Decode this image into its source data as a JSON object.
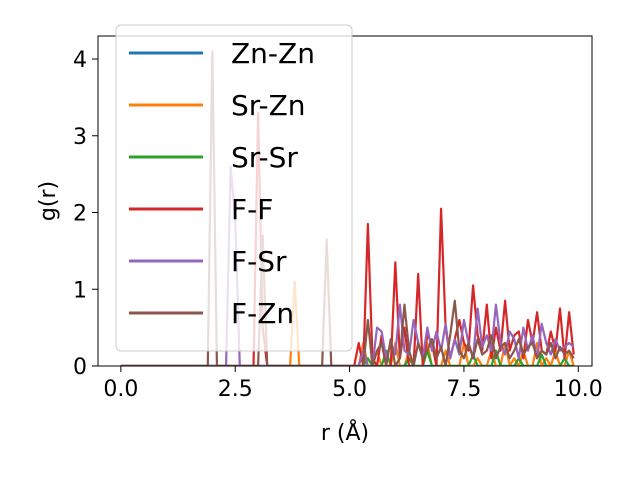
{
  "chart_data": {
    "type": "line",
    "title": "",
    "xlabel": "r (Å)",
    "ylabel": "g(r)",
    "xlim": [
      -0.5,
      10.3
    ],
    "ylim": [
      0,
      4.3
    ],
    "x_ticks": [
      0.0,
      2.5,
      5.0,
      7.5,
      10.0
    ],
    "x_tick_labels": [
      "0.0",
      "2.5",
      "5.0",
      "7.5",
      "10.0"
    ],
    "y_ticks": [
      0,
      1,
      2,
      3,
      4
    ],
    "y_tick_labels": [
      "0",
      "1",
      "2",
      "3",
      "4"
    ],
    "legend_position": "top-left",
    "x_start": 0.0,
    "x_step": 0.1,
    "series": [
      {
        "name": "Zn-Zn",
        "color": "#1f77b4",
        "values": [
          0,
          0,
          0,
          0,
          0,
          0,
          0,
          0,
          0,
          0,
          0,
          0,
          0,
          0,
          0,
          0,
          0,
          0,
          0,
          0,
          0,
          0,
          0,
          0,
          0,
          0,
          0,
          0,
          0,
          0,
          0,
          0,
          0,
          0,
          0,
          0,
          0,
          0,
          0,
          0,
          0,
          0,
          0,
          0,
          0,
          0,
          0,
          0,
          0,
          0,
          0,
          0,
          0,
          0,
          0,
          0,
          0,
          0,
          0,
          0,
          0,
          0,
          0,
          0,
          0,
          0,
          0,
          0,
          0,
          0,
          0,
          0,
          0,
          0,
          0,
          0,
          0,
          0,
          0,
          0,
          0,
          0,
          0,
          0,
          0,
          0,
          0,
          0,
          0,
          0,
          0,
          0,
          0,
          0,
          0,
          0,
          0,
          0,
          0,
          0
        ]
      },
      {
        "name": "Sr-Zn",
        "color": "#ff7f0e",
        "values": [
          0,
          0,
          0,
          0,
          0,
          0,
          0,
          0,
          0,
          0,
          0,
          0,
          0,
          0,
          0,
          0,
          0,
          0,
          0,
          0,
          0,
          0,
          0,
          0,
          0,
          0,
          0,
          0,
          0,
          0,
          0,
          0,
          0,
          0,
          0,
          0,
          0,
          0,
          1.1,
          0,
          0,
          0,
          0,
          0,
          0,
          0,
          0,
          0,
          0,
          0,
          0,
          0,
          0,
          0.3,
          0,
          0,
          0.2,
          0,
          0,
          0,
          0.3,
          0,
          0,
          0.2,
          0,
          0,
          0,
          0.3,
          0,
          0,
          0,
          0.2,
          0,
          0,
          0,
          0.3,
          0,
          0,
          0.1,
          0,
          0,
          0.2,
          0,
          0,
          0.3,
          0,
          0.1,
          0,
          0.2,
          0,
          0,
          0.3,
          0,
          0.1,
          0,
          0.2,
          0,
          0,
          0.2,
          0
        ]
      },
      {
        "name": "Sr-Sr",
        "color": "#2ca02c",
        "values": [
          0,
          0,
          0,
          0,
          0,
          0,
          0,
          0,
          0,
          0,
          0,
          0,
          0,
          0,
          0,
          0,
          0,
          0,
          0,
          0,
          0,
          0,
          0,
          0,
          0,
          0,
          0,
          0,
          0,
          0,
          0,
          0,
          0,
          0,
          0,
          0,
          0,
          0,
          0,
          0,
          0,
          0,
          0,
          0,
          0,
          0,
          0,
          0,
          0,
          0,
          0,
          0,
          0,
          0,
          0.1,
          0,
          0,
          0,
          0.2,
          0,
          0,
          0,
          0,
          0.1,
          0,
          0,
          0,
          0.2,
          0,
          0,
          0,
          0,
          0,
          0,
          0,
          0,
          0,
          0.15,
          0,
          0,
          0,
          0,
          0.2,
          0,
          0,
          0,
          0,
          0.1,
          0,
          0,
          0,
          0,
          0.15,
          0,
          0,
          0,
          0,
          0.1,
          0,
          0
        ]
      },
      {
        "name": "F-F",
        "color": "#d62728",
        "values": [
          0,
          0,
          0,
          0,
          0,
          0,
          0,
          0,
          0,
          0,
          0,
          0,
          0,
          0,
          0,
          0,
          0,
          0,
          0,
          0,
          0,
          0,
          0,
          0,
          0,
          0,
          0,
          0,
          0,
          0,
          3.3,
          0.5,
          0,
          0,
          0,
          0,
          0,
          0,
          0,
          0,
          0,
          0,
          0,
          0,
          0,
          0,
          0,
          0,
          0,
          0,
          0,
          0,
          0.3,
          0,
          1.85,
          0.1,
          0,
          0.4,
          0,
          0,
          1.35,
          0.1,
          0.5,
          0,
          0,
          1.2,
          0,
          0.4,
          0.3,
          0,
          2.05,
          0.5,
          0.1,
          0.35,
          0.6,
          0.3,
          0.2,
          1.05,
          0.4,
          0.2,
          0.8,
          0.1,
          0.5,
          0.2,
          0.85,
          0.2,
          0.4,
          0.45,
          0.1,
          0.6,
          0.3,
          0.7,
          0.2,
          0.15,
          0.45,
          0.2,
          0.75,
          0.1,
          0.7,
          0.15
        ]
      },
      {
        "name": "F-Sr",
        "color": "#9467bd",
        "values": [
          0,
          0,
          0,
          0,
          0,
          0,
          0,
          0,
          0,
          0,
          0,
          0,
          0,
          0,
          0,
          0,
          0,
          0,
          0,
          0,
          0,
          0,
          0,
          0,
          2.6,
          1.9,
          0,
          0,
          0,
          0,
          0,
          0,
          0,
          0,
          0,
          0,
          0,
          0,
          0,
          0,
          0,
          0,
          0,
          0,
          0,
          0,
          0,
          0,
          0,
          0,
          0,
          0,
          0,
          0.2,
          0,
          0,
          0.5,
          0.45,
          0.1,
          0.3,
          0.15,
          0.8,
          0.2,
          0.15,
          0.6,
          0.3,
          0.1,
          0.5,
          0.2,
          0.45,
          0.2,
          0.55,
          0.1,
          0.35,
          0.15,
          0.6,
          0.3,
          0.1,
          0.75,
          0.25,
          0.4,
          0.2,
          0.8,
          0.3,
          0.15,
          0.45,
          0.35,
          0.1,
          0.5,
          0.2,
          0.4,
          0.1,
          0.55,
          0.3,
          0.15,
          0.35,
          0.2,
          0.25,
          0.3,
          0.25
        ]
      },
      {
        "name": "F-Zn",
        "color": "#8c564b",
        "values": [
          0,
          0,
          0,
          0,
          0,
          0,
          0,
          0,
          0,
          0,
          0,
          0,
          0,
          0,
          0,
          0,
          0,
          0,
          0,
          0,
          4.1,
          0,
          0,
          0,
          0,
          0,
          0,
          0,
          0,
          0,
          0,
          1.7,
          0,
          0,
          0,
          0,
          0,
          0,
          0,
          0,
          0,
          0,
          0,
          0,
          0,
          1.65,
          0,
          0,
          0,
          0,
          0,
          0,
          0,
          0,
          0.6,
          0,
          0.2,
          0.3,
          0,
          0.35,
          0,
          0.1,
          0.8,
          0.2,
          0,
          0.3,
          0.1,
          0.2,
          0.35,
          0.1,
          0.25,
          0,
          0.4,
          0.85,
          0.2,
          0.1,
          0.3,
          0.1,
          0.35,
          0.15,
          0.2,
          0.4,
          0.1,
          0.25,
          0.3,
          0.1,
          0.2,
          0.35,
          0.15,
          0.25,
          0.3,
          0.1,
          0.2,
          0.15,
          0.3,
          0.1,
          0.25,
          0.15,
          0.2,
          0.1
        ]
      }
    ]
  }
}
